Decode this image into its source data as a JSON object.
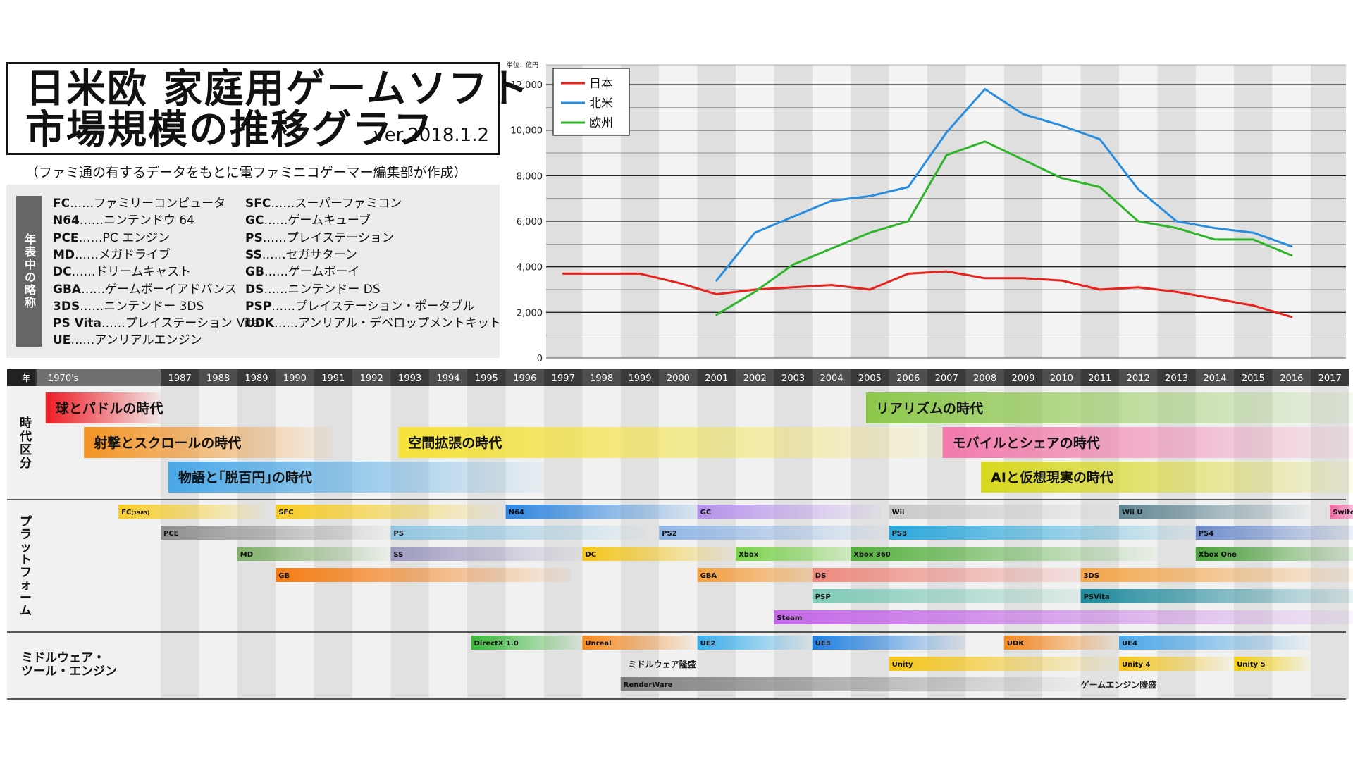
{
  "title": {
    "line1": "日米欧 家庭用ゲームソフト",
    "line2": "市場規模の推移グラフ",
    "version": "ver.2018.1.2",
    "subtitle": "（ファミ通の有するデータをもとに電ファミニコゲーマー編集部が作成）"
  },
  "abbreviations": {
    "heading": "年表中の略称",
    "left": [
      {
        "code": "FC",
        "name": "ファミリーコンピュータ"
      },
      {
        "code": "N64",
        "name": "ニンテンドウ 64"
      },
      {
        "code": "PCE",
        "name": "PC エンジン"
      },
      {
        "code": "MD",
        "name": "メガドライブ"
      },
      {
        "code": "DC",
        "name": "ドリームキャスト"
      },
      {
        "code": "GBA",
        "name": "ゲームボーイアドバンス"
      },
      {
        "code": "3DS",
        "name": "ニンテンドー 3DS"
      },
      {
        "code": "PS Vita",
        "name": "プレイステーション Vita"
      },
      {
        "code": "UE",
        "name": "アンリアルエンジン"
      }
    ],
    "right": [
      {
        "code": "SFC",
        "name": "スーパーファミコン"
      },
      {
        "code": "GC",
        "name": "ゲームキューブ"
      },
      {
        "code": "PS",
        "name": "プレイステーション"
      },
      {
        "code": "SS",
        "name": "セガサターン"
      },
      {
        "code": "GB",
        "name": "ゲームボーイ"
      },
      {
        "code": "DS",
        "name": "ニンテンドー DS"
      },
      {
        "code": "PSP",
        "name": "プレイステーション・ポータブル"
      },
      {
        "code": "UDK",
        "name": "アンリアル・デベロップメントキット"
      }
    ],
    "separator": "……"
  },
  "chart_data": {
    "type": "line",
    "unit_label": "単位：億円",
    "x": [
      1997,
      1998,
      1999,
      2000,
      2001,
      2002,
      2003,
      2004,
      2005,
      2006,
      2007,
      2008,
      2009,
      2010,
      2011,
      2012,
      2013,
      2014,
      2015,
      2016
    ],
    "ylim": [
      0,
      12500
    ],
    "yticks": [
      0,
      2000,
      4000,
      6000,
      8000,
      10000,
      12000
    ],
    "ytick_labels": [
      "0",
      "2,000",
      "4,000",
      "6,000",
      "8,000",
      "10,000",
      "12,000"
    ],
    "legend_position": "top-left",
    "series": [
      {
        "name": "日本",
        "color": "#e8221c",
        "values": [
          3700,
          3700,
          3700,
          3300,
          2800,
          3000,
          3100,
          3200,
          3000,
          3700,
          3800,
          3500,
          3500,
          3400,
          3000,
          3100,
          2900,
          2600,
          2300,
          1800
        ]
      },
      {
        "name": "北米",
        "color": "#2a8ee0",
        "values": [
          null,
          null,
          null,
          null,
          3400,
          5500,
          6200,
          6900,
          7100,
          7500,
          9900,
          11800,
          10700,
          10200,
          9600,
          7400,
          6000,
          5700,
          5500,
          4900
        ]
      },
      {
        "name": "欧州",
        "color": "#2fb52a",
        "values": [
          null,
          null,
          null,
          null,
          1900,
          2900,
          4100,
          4800,
          5500,
          6000,
          8900,
          9500,
          8700,
          7900,
          7500,
          6000,
          5700,
          5200,
          5200,
          4500
        ]
      }
    ]
  },
  "timeline": {
    "year_header_label": "年",
    "labels": [
      "1970's",
      "1987",
      "1988",
      "1989",
      "1990",
      "1991",
      "1992",
      "1993",
      "1994",
      "1995",
      "1996",
      "1997",
      "1998",
      "1999",
      "2000",
      "2001",
      "2002",
      "2003",
      "2004",
      "2005",
      "2006",
      "2007",
      "2008",
      "2009",
      "2010",
      "2011",
      "2012",
      "2013",
      "2014",
      "2015",
      "2016",
      "2017"
    ],
    "sections": [
      {
        "name": "時代区分"
      },
      {
        "name": "プラットフォーム"
      },
      {
        "name": "ミドルウェア・\nツール・エンジン"
      }
    ],
    "eras": [
      {
        "label": "球とパドルの時代",
        "start": -3,
        "end": 0.0,
        "row": 0,
        "color": "#ee1c25"
      },
      {
        "label": "射撃とスクロールの時代",
        "start": -2,
        "end": 4.5,
        "row": 1,
        "color": "#f39323"
      },
      {
        "label": "物語と｢脱百円｣の時代",
        "start": 0.2,
        "end": 10.0,
        "row": 2,
        "color": "#4aa8e8"
      },
      {
        "label": "空間拡張の時代",
        "start": 6.2,
        "end": 21.0,
        "row": 1,
        "color": "#f5e23a"
      },
      {
        "label": "リアリズムの時代",
        "start": 18.4,
        "end": 31.5,
        "row": 0,
        "color": "#8cc84b"
      },
      {
        "label": "モバイルとシェアの時代",
        "start": 20.4,
        "end": 31.5,
        "row": 1,
        "color": "#f27aab"
      },
      {
        "label": "AIと仮想現実の時代",
        "start": 21.4,
        "end": 31.5,
        "row": 2,
        "color": "#d8d81e"
      }
    ],
    "platforms": [
      {
        "label": "FC",
        "sup": "(1983)",
        "start": -1.1,
        "end": 2.7,
        "row": 0,
        "color": "#f7cc23"
      },
      {
        "label": "SFC",
        "start": 3.0,
        "end": 8.9,
        "row": 0,
        "color": "#f7cc23"
      },
      {
        "label": "N64",
        "start": 9.0,
        "end": 14.4,
        "row": 0,
        "color": "#2f86e0"
      },
      {
        "label": "GC",
        "start": 14.0,
        "end": 18.8,
        "row": 0,
        "color": "#b692ec"
      },
      {
        "label": "Wii",
        "start": 19.0,
        "end": 25.0,
        "row": 0,
        "color": "#c8c8c8"
      },
      {
        "label": "Wii U",
        "start": 25.0,
        "end": 30.0,
        "row": 0,
        "color": "#5e8592"
      },
      {
        "label": "Switch",
        "start": 30.5,
        "end": 31.5,
        "row": 0,
        "color": "#f46aa8"
      },
      {
        "label": "PCE",
        "start": 0.0,
        "end": 6.0,
        "row": 1,
        "color": "#8f8f8f"
      },
      {
        "label": "PS",
        "start": 6.0,
        "end": 12.7,
        "row": 1,
        "color": "#91c6e2"
      },
      {
        "label": "PS2",
        "start": 13.0,
        "end": 19.0,
        "row": 1,
        "color": "#8fb5e6"
      },
      {
        "label": "PS3",
        "start": 19.0,
        "end": 27.0,
        "row": 1,
        "color": "#2aa7dc"
      },
      {
        "label": "PS4",
        "start": 27.0,
        "end": 31.5,
        "row": 1,
        "color": "#6c8ccd"
      },
      {
        "label": "MD",
        "start": 2.0,
        "end": 6.0,
        "row": 2,
        "color": "#7fb069"
      },
      {
        "label": "SS",
        "start": 6.0,
        "end": 11.0,
        "row": 2,
        "color": "#9d9ac0"
      },
      {
        "label": "DC",
        "start": 11.0,
        "end": 15.0,
        "row": 2,
        "color": "#f5c518"
      },
      {
        "label": "Xbox",
        "start": 15.0,
        "end": 19.0,
        "row": 2,
        "color": "#78d24a"
      },
      {
        "label": "Xbox 360",
        "start": 18.0,
        "end": 26.0,
        "row": 2,
        "color": "#55b03e"
      },
      {
        "label": "Xbox One",
        "start": 27.0,
        "end": 31.5,
        "row": 2,
        "color": "#4aa03a"
      },
      {
        "label": "GB",
        "start": 3.0,
        "end": 10.7,
        "row": 3,
        "color": "#f57c12"
      },
      {
        "label": "GBA",
        "start": 14.0,
        "end": 18.5,
        "row": 3,
        "color": "#f5a040"
      },
      {
        "label": "DS",
        "start": 17.0,
        "end": 25.0,
        "row": 3,
        "color": "#ee8a80"
      },
      {
        "label": "3DS",
        "start": 24.0,
        "end": 31.5,
        "row": 3,
        "color": "#f5a64a"
      },
      {
        "label": "PSP",
        "start": 17.0,
        "end": 25.0,
        "row": 4,
        "color": "#7fcab8"
      },
      {
        "label": "PSVita",
        "start": 24.0,
        "end": 31.5,
        "row": 4,
        "color": "#1f8a9c"
      },
      {
        "label": "Steam",
        "start": 16.0,
        "end": 31.5,
        "row": 5,
        "color": "#c468e8"
      }
    ],
    "middleware": [
      {
        "label": "DirectX 1.0",
        "start": 8.1,
        "end": 11.0,
        "row": 0,
        "color": "#38b838"
      },
      {
        "label": "Unreal",
        "start": 11.0,
        "end": 14.0,
        "row": 0,
        "color": "#f5881f"
      },
      {
        "label": "UE2",
        "start": 14.0,
        "end": 17.0,
        "row": 0,
        "color": "#3ab0ee"
      },
      {
        "label": "UE3",
        "start": 17.0,
        "end": 21.0,
        "row": 0,
        "color": "#1e7ee0"
      },
      {
        "label": "UDK",
        "start": 22.0,
        "end": 25.0,
        "row": 0,
        "color": "#f5881f"
      },
      {
        "label": "UE4",
        "start": 25.0,
        "end": 30.0,
        "row": 0,
        "color": "#4aa6e8"
      },
      {
        "label": "Unity",
        "start": 19.0,
        "end": 25.0,
        "row": 1,
        "color": "#f5c518"
      },
      {
        "label": "Unity 4",
        "start": 25.0,
        "end": 28.0,
        "row": 1,
        "color": "#f5c518"
      },
      {
        "label": "Unity 5",
        "start": 28.0,
        "end": 30.0,
        "row": 1,
        "color": "#f5d010"
      },
      {
        "label": "RenderWare",
        "start": 12.0,
        "end": 24.0,
        "row": 2,
        "color": "#808080"
      }
    ],
    "notes": [
      {
        "text": "ミドルウェア隆盛",
        "col": 12.2,
        "row": 1
      },
      {
        "text": "ゲームエンジン隆盛",
        "col": 24.0,
        "row": 2
      }
    ]
  }
}
